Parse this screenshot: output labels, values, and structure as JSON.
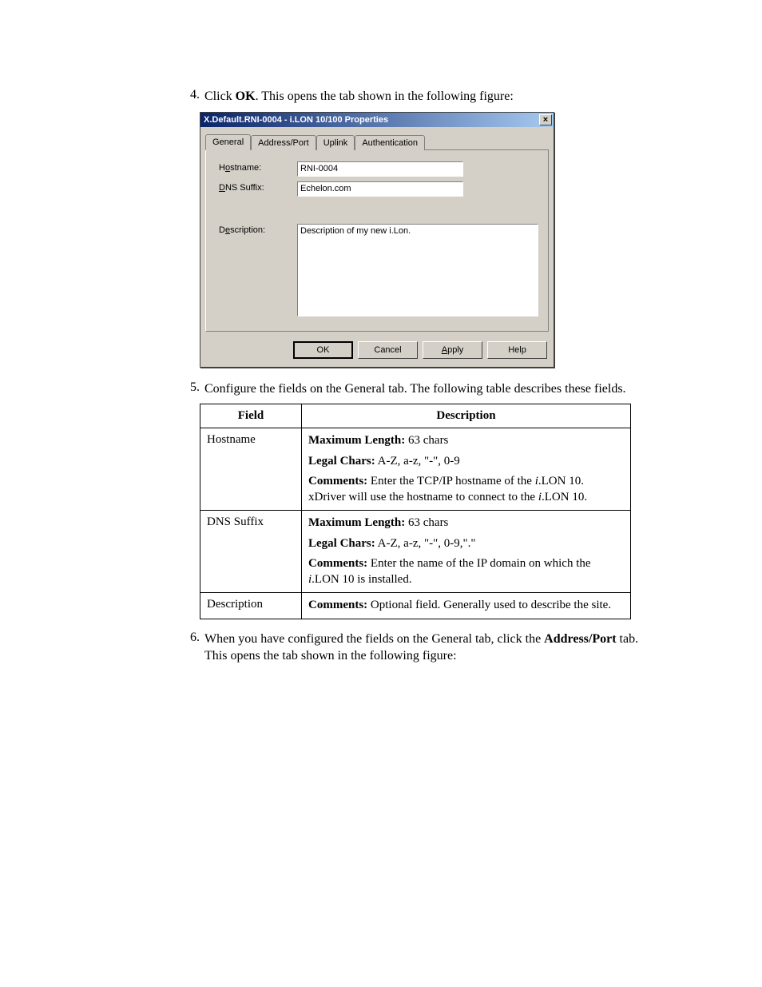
{
  "step4": {
    "num": "4.",
    "prefix": "Click ",
    "bold": "OK",
    "suffix": ". This opens the tab shown in the following figure:"
  },
  "dialog": {
    "title": "X.Default.RNI-0004 - i.LON 10/100 Properties",
    "close": "×",
    "tabs": {
      "general": "General",
      "address": "Address/Port",
      "uplink": "Uplink",
      "auth": "Authentication"
    },
    "labels": {
      "hostname_pre": "H",
      "hostname_ul": "o",
      "hostname_post": "stname:",
      "dns_ul": "D",
      "dns_post": "NS Suffix:",
      "desc_pre": "D",
      "desc_ul": "e",
      "desc_post": "scription:"
    },
    "values": {
      "hostname": "RNI-0004",
      "dns": "Echelon.com",
      "description": "Description of my new i.Lon."
    },
    "buttons": {
      "ok": "OK",
      "cancel": "Cancel",
      "apply_ul": "A",
      "apply_post": "pply",
      "help": "Help"
    }
  },
  "step5": {
    "num": "5.",
    "text": "Configure the fields on the General tab. The following table describes these fields."
  },
  "table": {
    "head_field": "Field",
    "head_desc": "Description",
    "rows": [
      {
        "field": "Hostname",
        "desc": [
          {
            "b": "Maximum Length:",
            "t": " 63 chars"
          },
          {
            "b": "Legal Chars:",
            "t": " A-Z, a-z, \"-\", 0-9"
          },
          {
            "b": "Comments:",
            "t": " Enter the TCP/IP hostname of the ",
            "i": "i",
            "t2": ".LON 10. xDriver will use the hostname to connect to the ",
            "i2": "i",
            "t3": ".LON 10."
          }
        ]
      },
      {
        "field": "DNS Suffix",
        "desc": [
          {
            "b": "Maximum Length:",
            "t": " 63 chars"
          },
          {
            "b": "Legal Chars:",
            "t": " A-Z, a-z, \"-\", 0-9,\".\""
          },
          {
            "b": "Comments:",
            "t": " Enter the name of the IP domain on which the ",
            "i": "i",
            "t2": ".LON 10 is installed."
          }
        ]
      },
      {
        "field": "Description",
        "desc": [
          {
            "b": "Comments:",
            "t": " Optional field. Generally used to describe the site."
          }
        ]
      }
    ]
  },
  "step6": {
    "num": "6.",
    "prefix": "When you have configured the fields on the General tab, click the ",
    "bold": "Address/Port",
    "suffix": " tab. This opens the tab shown in the following figure:"
  }
}
